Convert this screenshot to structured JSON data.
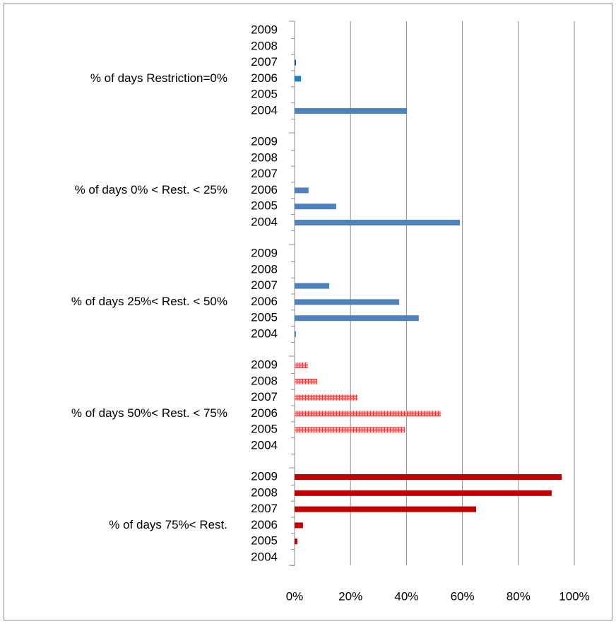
{
  "chart_data": {
    "type": "bar",
    "orientation": "horizontal",
    "xlim": [
      0,
      100
    ],
    "xticks": [
      {
        "value": 0,
        "label": "0%"
      },
      {
        "value": 20,
        "label": "20%"
      },
      {
        "value": 40,
        "label": "40%"
      },
      {
        "value": 60,
        "label": "60%"
      },
      {
        "value": 80,
        "label": "80%"
      },
      {
        "value": 100,
        "label": "100%"
      }
    ],
    "grid": true,
    "groups": [
      {
        "label": "% of days Restriction=0%",
        "categories": [
          "2009",
          "2008",
          "2007",
          "2006",
          "2005",
          "2004"
        ],
        "values": [
          null,
          null,
          0.5,
          2.3,
          null,
          40.2
        ],
        "colors": [
          null,
          null,
          "#1f4e8c",
          "#1f7fc4",
          null,
          "#4f81bd"
        ]
      },
      {
        "label": "% of days 0%  < Rest. < 25%",
        "categories": [
          "2009",
          "2008",
          "2007",
          "2006",
          "2005",
          "2004"
        ],
        "values": [
          null,
          null,
          null,
          5,
          14.9,
          59.1
        ],
        "colors": [
          null,
          null,
          null,
          "#4f81bd",
          "#4f81bd",
          "#4f81bd"
        ]
      },
      {
        "label": "% of days 25%< Rest. < 50%",
        "categories": [
          "2009",
          "2008",
          "2007",
          "2006",
          "2005",
          "2004"
        ],
        "values": [
          null,
          null,
          12.4,
          37.4,
          44.4,
          0.5
        ],
        "colors": [
          null,
          null,
          "#4f81bd",
          "#4f81bd",
          "#4f81bd",
          "#4f81bd"
        ]
      },
      {
        "label": "% of days 50%< Rest. < 75%",
        "categories": [
          "2009",
          "2008",
          "2007",
          "2006",
          "2005",
          "2004"
        ],
        "values": [
          4.8,
          8.1,
          22.5,
          52.3,
          39.4,
          null
        ],
        "colors": [
          "#ff5a5a",
          "#ff5a5a",
          "#ff5a5a",
          "#ff5a5a",
          "#ff5a5a",
          null
        ],
        "pattern": "hatch"
      },
      {
        "label": "% of days 75%< Rest.",
        "categories": [
          "2009",
          "2008",
          "2007",
          "2006",
          "2005",
          "2004"
        ],
        "values": [
          95.5,
          91.9,
          64.9,
          3,
          1,
          null
        ],
        "colors": [
          "#c00000",
          "#c00000",
          "#c00000",
          "#c00000",
          "#c00000",
          null
        ]
      }
    ]
  }
}
